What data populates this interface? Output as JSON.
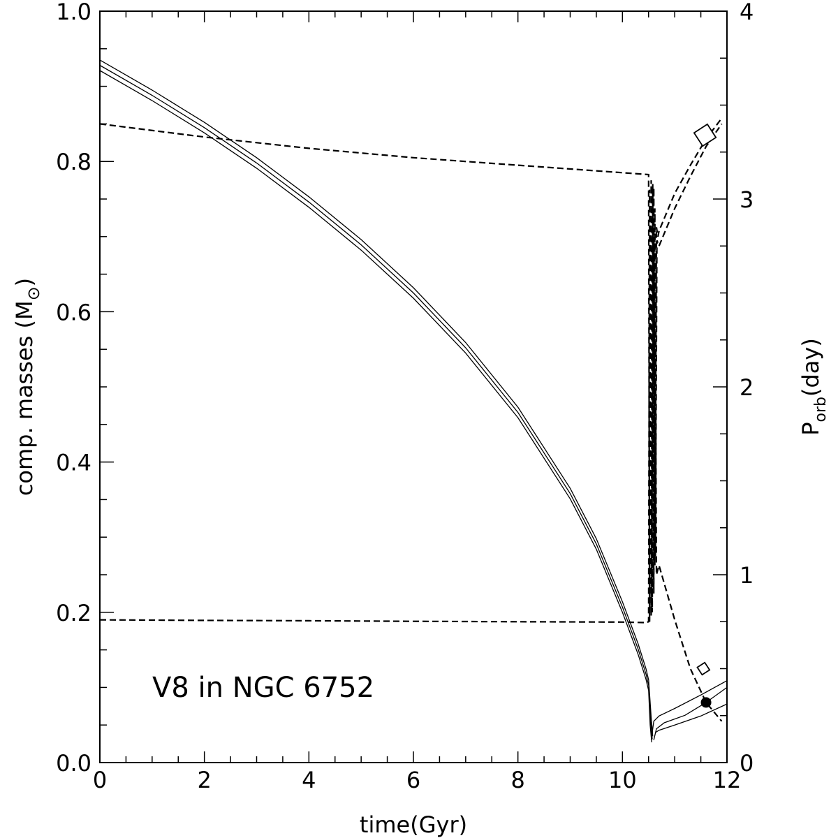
{
  "chart_data": {
    "type": "line",
    "title": "",
    "annotation": "V8 in NGC 6752",
    "xlabel": "time(Gyr)",
    "ylabel_left": {
      "main": "comp. masses (M",
      "sub": "⊙",
      "close": ")"
    },
    "ylabel_right": {
      "main": "P",
      "sub": "orb",
      "rest": "(day)"
    },
    "xlim": [
      0,
      12
    ],
    "ylim_left": [
      0,
      1
    ],
    "ylim_right": [
      0,
      4
    ],
    "x_ticks": [
      0,
      2,
      4,
      6,
      8,
      10,
      12
    ],
    "x_tick_labels": [
      "0",
      "2",
      "4",
      "6",
      "8",
      "10",
      "12"
    ],
    "y_left_ticks": [
      0,
      0.2,
      0.4,
      0.6,
      0.8,
      1.0
    ],
    "y_left_tick_labels": [
      "0.0",
      "0.2",
      "0.4",
      "0.6",
      "0.8",
      "1.0"
    ],
    "y_right_ticks": [
      0,
      1,
      2,
      3,
      4
    ],
    "y_right_tick_labels": [
      "0",
      "1",
      "2",
      "3",
      "4"
    ],
    "series": [
      {
        "name": "donor mass (track a)",
        "axis": "left",
        "style": "solid",
        "x": [
          0,
          1,
          2,
          3,
          4,
          5,
          6,
          7,
          8,
          9,
          9.5,
          10,
          10.3,
          10.45,
          10.5,
          10.55,
          10.58
        ],
        "y": [
          0.935,
          0.895,
          0.852,
          0.805,
          0.753,
          0.696,
          0.632,
          0.559,
          0.473,
          0.365,
          0.298,
          0.214,
          0.158,
          0.125,
          0.11,
          0.06,
          0.035
        ]
      },
      {
        "name": "donor mass (track b)",
        "axis": "left",
        "style": "solid",
        "x": [
          0,
          1,
          2,
          3,
          4,
          5,
          6,
          7,
          8,
          9,
          9.5,
          10,
          10.3,
          10.45,
          10.5,
          10.54,
          10.57
        ],
        "y": [
          0.928,
          0.888,
          0.845,
          0.798,
          0.746,
          0.689,
          0.625,
          0.552,
          0.466,
          0.358,
          0.291,
          0.207,
          0.151,
          0.118,
          0.103,
          0.055,
          0.031
        ]
      },
      {
        "name": "donor mass (track c)",
        "axis": "left",
        "style": "solid",
        "x": [
          0,
          1,
          2,
          3,
          4,
          5,
          6,
          7,
          8,
          9,
          9.5,
          10,
          10.3,
          10.45,
          10.5,
          10.53,
          10.56
        ],
        "y": [
          0.921,
          0.881,
          0.838,
          0.791,
          0.739,
          0.682,
          0.618,
          0.545,
          0.459,
          0.351,
          0.284,
          0.2,
          0.144,
          0.111,
          0.096,
          0.05,
          0.027
        ]
      },
      {
        "name": "late mass track 1",
        "axis": "left",
        "style": "solid",
        "x": [
          10.55,
          10.6,
          10.7,
          11.0,
          11.5,
          12.0
        ],
        "y": [
          0.03,
          0.055,
          0.062,
          0.072,
          0.09,
          0.109
        ]
      },
      {
        "name": "late mass track 2",
        "axis": "left",
        "style": "solid",
        "x": [
          10.6,
          10.65,
          10.8,
          11.2,
          11.6,
          12.0
        ],
        "y": [
          0.03,
          0.045,
          0.053,
          0.063,
          0.08,
          0.1
        ]
      },
      {
        "name": "late mass track 3",
        "axis": "left",
        "style": "solid",
        "x": [
          10.63,
          10.7,
          11.0,
          11.5,
          12.0
        ],
        "y": [
          0.04,
          0.043,
          0.05,
          0.062,
          0.078
        ]
      },
      {
        "name": "orbital period (upper branch)",
        "axis": "right",
        "style": "dashed",
        "x": [
          0,
          2,
          4,
          6,
          8,
          10,
          10.5,
          10.52,
          10.55,
          10.57,
          10.6,
          10.62,
          10.65,
          10.68,
          10.7,
          11.0,
          11.3,
          11.6,
          11.9
        ],
        "y": [
          3.4,
          3.33,
          3.27,
          3.22,
          3.18,
          3.14,
          3.13,
          0.75,
          3.1,
          0.8,
          3.06,
          1.05,
          2.85,
          2.8,
          2.83,
          3.03,
          3.18,
          3.32,
          3.43
        ]
      },
      {
        "name": "orbital period (lower branch)",
        "axis": "right",
        "style": "dashed",
        "x": [
          0,
          2,
          4,
          6,
          8,
          10,
          10.45,
          10.5,
          10.52,
          10.55,
          10.58,
          10.6,
          10.62,
          10.65,
          10.7,
          11.0,
          11.3,
          11.6,
          11.9
        ],
        "y": [
          0.76,
          0.757,
          0.755,
          0.752,
          0.75,
          0.748,
          0.745,
          0.75,
          3.05,
          0.78,
          3.08,
          0.9,
          2.95,
          1.0,
          1.05,
          0.76,
          0.5,
          0.32,
          0.22
        ]
      },
      {
        "name": "orbital period (third branch)",
        "axis": "right",
        "style": "dashed",
        "x": [
          10.55,
          10.6,
          10.63,
          10.66,
          10.7,
          11.0,
          11.3,
          11.6,
          11.9
        ],
        "y": [
          0.8,
          2.8,
          1.1,
          2.78,
          2.75,
          2.95,
          3.12,
          3.28,
          3.4
        ]
      }
    ],
    "markers": [
      {
        "name": "open diamond (large)",
        "axis": "right",
        "shape": "diamond",
        "fill": "open",
        "size": "large",
        "x": 11.58,
        "y": 3.34
      },
      {
        "name": "open diamond (small)",
        "axis": "right",
        "shape": "diamond",
        "fill": "open",
        "size": "small",
        "x": 11.55,
        "y": 0.5
      },
      {
        "name": "filled circle (observed)",
        "axis": "left",
        "shape": "circle",
        "fill": "filled",
        "size": "small",
        "x": 11.6,
        "y": 0.08
      }
    ]
  }
}
